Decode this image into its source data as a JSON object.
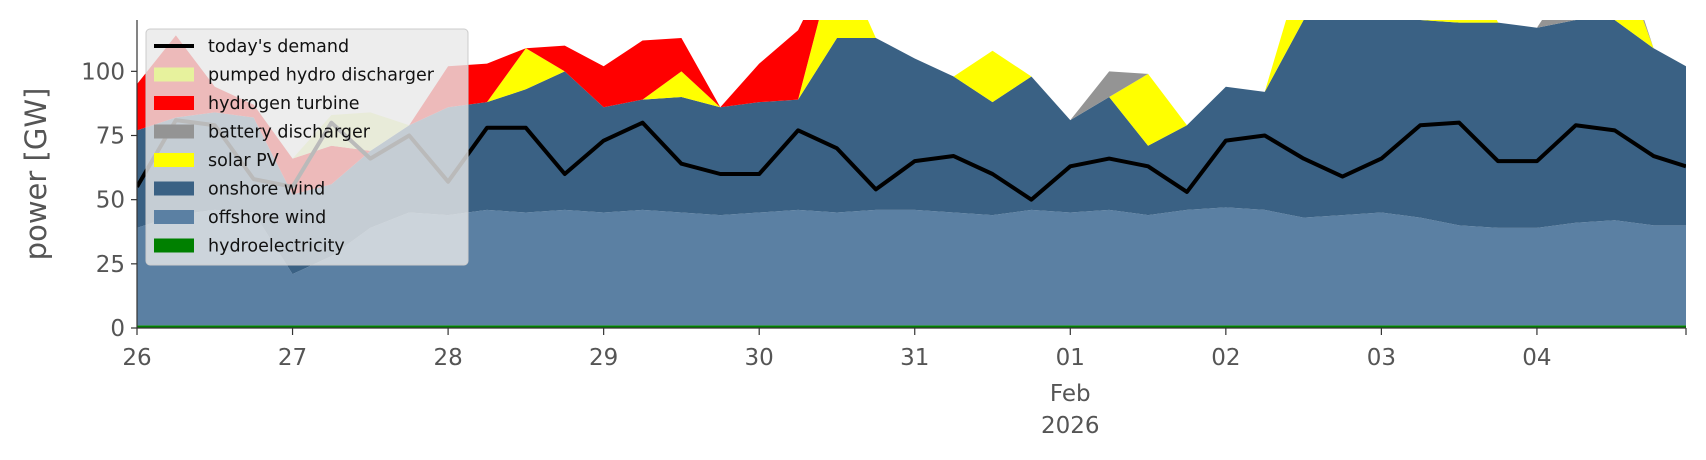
{
  "chart_data": {
    "type": "area",
    "ylabel": "power [GW]",
    "ylim": [
      0,
      120
    ],
    "yticks": [
      0,
      25,
      50,
      75,
      100
    ],
    "xlim": [
      "2026-01-26T00:00",
      "2026-02-04T23:00"
    ],
    "x_ticks": [
      {
        "x": "2026-01-26",
        "label": "26"
      },
      {
        "x": "2026-01-27",
        "label": "27"
      },
      {
        "x": "2026-01-28",
        "label": "28"
      },
      {
        "x": "2026-01-29",
        "label": "29"
      },
      {
        "x": "2026-01-30",
        "label": "30"
      },
      {
        "x": "2026-01-31",
        "label": "31"
      },
      {
        "x": "2026-02-01",
        "label": "01",
        "sublabels": [
          "Feb",
          "2026"
        ]
      },
      {
        "x": "2026-02-02",
        "label": "02"
      },
      {
        "x": "2026-02-03",
        "label": "03"
      },
      {
        "x": "2026-02-04",
        "label": "04"
      }
    ],
    "grid": false,
    "legend_position": "top-left",
    "x": [
      "2026-01-26T00:00",
      "2026-01-26T06:00",
      "2026-01-26T12:00",
      "2026-01-26T18:00",
      "2026-01-27T00:00",
      "2026-01-27T06:00",
      "2026-01-27T12:00",
      "2026-01-27T18:00",
      "2026-01-28T00:00",
      "2026-01-28T06:00",
      "2026-01-28T12:00",
      "2026-01-28T18:00",
      "2026-01-29T00:00",
      "2026-01-29T06:00",
      "2026-01-29T12:00",
      "2026-01-29T18:00",
      "2026-01-30T00:00",
      "2026-01-30T06:00",
      "2026-01-30T12:00",
      "2026-01-30T18:00",
      "2026-01-31T00:00",
      "2026-01-31T06:00",
      "2026-01-31T12:00",
      "2026-01-31T18:00",
      "2026-02-01T00:00",
      "2026-02-01T06:00",
      "2026-02-01T12:00",
      "2026-02-01T18:00",
      "2026-02-02T00:00",
      "2026-02-02T06:00",
      "2026-02-02T12:00",
      "2026-02-02T18:00",
      "2026-02-03T00:00",
      "2026-02-03T06:00",
      "2026-02-03T12:00",
      "2026-02-03T18:00",
      "2026-02-04T00:00",
      "2026-02-04T06:00",
      "2026-02-04T12:00",
      "2026-02-04T18:00",
      "2026-02-04T23:00"
    ],
    "stack_series": [
      {
        "name": "hydroelectricity",
        "color": "#008000",
        "values": [
          1,
          1,
          1,
          1,
          1,
          1,
          1,
          1,
          1,
          1,
          1,
          1,
          1,
          1,
          1,
          1,
          1,
          1,
          1,
          1,
          1,
          1,
          1,
          1,
          1,
          1,
          1,
          1,
          1,
          1,
          1,
          1,
          1,
          1,
          1,
          1,
          1,
          1,
          1,
          1,
          1
        ]
      },
      {
        "name": "offshore wind",
        "color": "#5b80a3",
        "values": [
          38,
          43,
          45,
          44,
          20,
          27,
          38,
          44,
          43,
          45,
          44,
          45,
          44,
          45,
          44,
          43,
          44,
          45,
          44,
          45,
          45,
          44,
          43,
          45,
          44,
          45,
          43,
          45,
          46,
          45,
          42,
          43,
          44,
          42,
          39,
          38,
          38,
          40,
          41,
          39,
          39
        ]
      },
      {
        "name": "onshore wind",
        "color": "#3a6184",
        "values": [
          38,
          38,
          38,
          37,
          31,
          28,
          30,
          34,
          42,
          42,
          48,
          54,
          41,
          43,
          45,
          42,
          43,
          43,
          68,
          67,
          59,
          53,
          44,
          52,
          36,
          44,
          27,
          33,
          47,
          46,
          77,
          77,
          76,
          77,
          79,
          80,
          78,
          79,
          78,
          69,
          62
        ]
      },
      {
        "name": "solar PV",
        "color": "#ffff00",
        "values": [
          0,
          0,
          0,
          0,
          0,
          0,
          0,
          0,
          0,
          0,
          16,
          0,
          0,
          0,
          10,
          0,
          0,
          0,
          34,
          0,
          0,
          0,
          20,
          0,
          0,
          0,
          28,
          0,
          0,
          0,
          23,
          0,
          0,
          0,
          33,
          0,
          0,
          0,
          30,
          0,
          0
        ]
      },
      {
        "name": "battery discharger",
        "color": "#949494",
        "values": [
          0,
          0,
          0,
          0,
          0,
          0,
          0,
          0,
          0,
          0,
          0,
          0,
          0,
          0,
          0,
          0,
          0,
          0,
          0,
          0,
          0,
          0,
          0,
          0,
          0,
          10,
          0,
          0,
          0,
          0,
          0,
          0,
          0,
          0,
          0,
          0,
          0,
          20,
          5,
          0,
          0
        ]
      },
      {
        "name": "hydrogen turbine",
        "color": "#ff0000",
        "values": [
          18,
          32,
          10,
          5,
          14,
          15,
          0,
          0,
          16,
          15,
          0,
          10,
          16,
          23,
          13,
          0,
          15,
          27,
          0,
          0,
          0,
          0,
          0,
          0,
          0,
          0,
          0,
          0,
          0,
          0,
          0,
          0,
          0,
          0,
          0,
          0,
          0,
          0,
          0,
          0,
          0
        ]
      },
      {
        "name": "pumped hydro discharger",
        "color": "#e7f29d",
        "values": [
          0,
          0,
          0,
          0,
          0,
          12,
          15,
          0,
          0,
          0,
          0,
          0,
          0,
          0,
          0,
          0,
          0,
          0,
          0,
          0,
          0,
          0,
          0,
          0,
          0,
          0,
          0,
          0,
          0,
          0,
          0,
          0,
          0,
          0,
          0,
          0,
          0,
          0,
          0,
          0,
          0
        ]
      }
    ],
    "line_series": {
      "name": "today's demand",
      "color": "#000000",
      "values": [
        55,
        81,
        79,
        58,
        55,
        80,
        66,
        75,
        57,
        78,
        78,
        60,
        73,
        80,
        64,
        60,
        60,
        77,
        70,
        54,
        65,
        67,
        60,
        50,
        63,
        66,
        63,
        53,
        73,
        75,
        66,
        59,
        66,
        79,
        80,
        65,
        65,
        79,
        77,
        67,
        63
      ]
    },
    "legend": [
      "today's demand",
      "pumped hydro discharger",
      "hydrogen turbine",
      "battery discharger",
      "solar PV",
      "onshore wind",
      "offshore wind",
      "hydroelectricity"
    ]
  }
}
